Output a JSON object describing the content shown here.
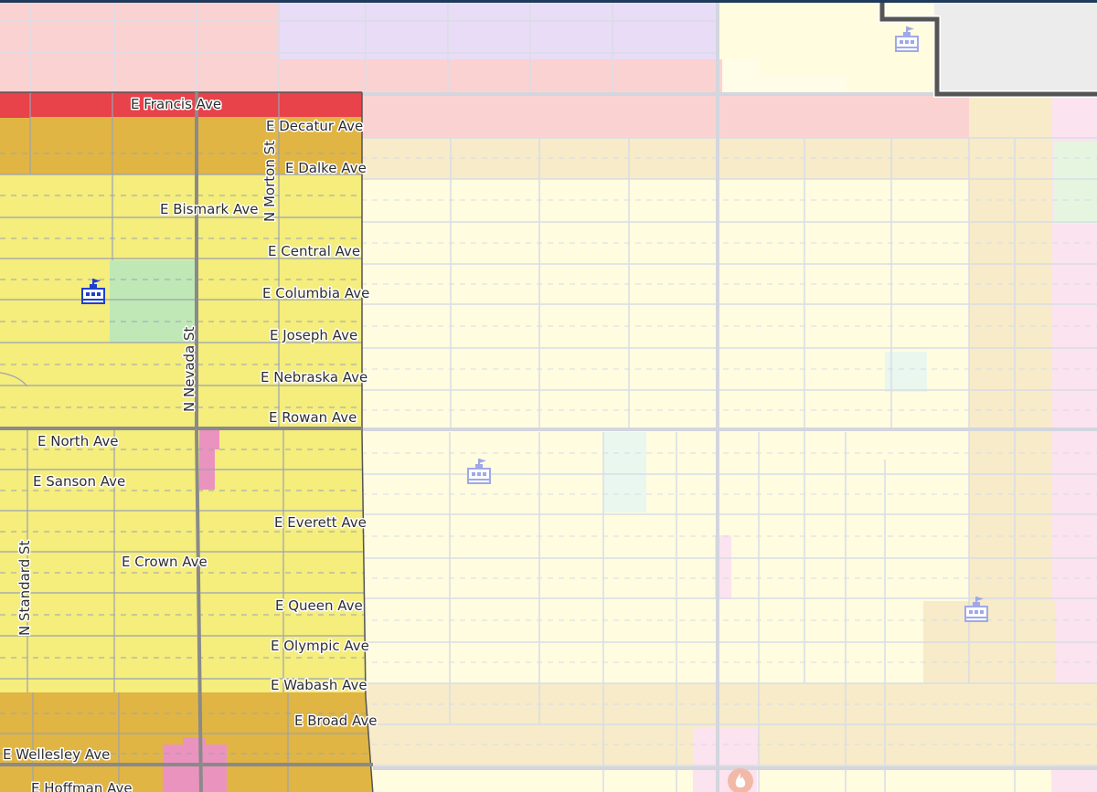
{
  "map": {
    "colors": {
      "highlight_residential": "#f5ed7c",
      "highlight_medium": "#e1b543",
      "highlight_commercial": "#e8424a",
      "park": "#bfe8b6",
      "faded_residential": "#fffce0",
      "faded_medium": "#f7ebc9",
      "faded_commercial": "#fbd2d2",
      "faded_institutional": "#e9dcf7",
      "faded_mixed": "#fbe3ef",
      "pink_parcel": "#ea93bf",
      "boundary": "#555555",
      "school_icon_active": "#1f3fd0",
      "school_icon_faded": "#9fa9e8"
    },
    "streets": [
      {
        "id": "e-francis-ave",
        "label": "E Francis Ave"
      },
      {
        "id": "e-decatur-ave",
        "label": "E Decatur Ave"
      },
      {
        "id": "e-dalke-ave",
        "label": "E Dalke Ave"
      },
      {
        "id": "n-morton-st",
        "label": "N Morton St"
      },
      {
        "id": "e-bismark-ave",
        "label": "E Bismark Ave"
      },
      {
        "id": "e-central-ave",
        "label": "E Central Ave"
      },
      {
        "id": "e-columbia-ave",
        "label": "E Columbia Ave"
      },
      {
        "id": "e-joseph-ave",
        "label": "E Joseph Ave"
      },
      {
        "id": "n-nevada-st",
        "label": "N Nevada St"
      },
      {
        "id": "e-nebraska-ave",
        "label": "E Nebraska Ave"
      },
      {
        "id": "e-rowan-ave",
        "label": "E Rowan Ave"
      },
      {
        "id": "e-north-ave",
        "label": "E North Ave"
      },
      {
        "id": "e-sanson-ave",
        "label": "E Sanson Ave"
      },
      {
        "id": "e-everett-ave",
        "label": "E Everett Ave"
      },
      {
        "id": "e-crown-ave",
        "label": "E Crown Ave"
      },
      {
        "id": "n-standard-st",
        "label": "N Standard St"
      },
      {
        "id": "e-queen-ave",
        "label": "E Queen Ave"
      },
      {
        "id": "e-olympic-ave",
        "label": "E Olympic Ave"
      },
      {
        "id": "e-wabash-ave",
        "label": "E Wabash Ave"
      },
      {
        "id": "e-broad-ave",
        "label": "E Broad Ave"
      },
      {
        "id": "e-wellesley-ave",
        "label": "E Wellesley Ave"
      },
      {
        "id": "e-hoffman-ave",
        "label": "E Hoffman Ave"
      }
    ],
    "icons": [
      {
        "id": "school-1",
        "icon": "school-icon",
        "state": "active"
      },
      {
        "id": "school-2",
        "icon": "school-icon",
        "state": "faded"
      },
      {
        "id": "school-3",
        "icon": "school-icon",
        "state": "faded"
      },
      {
        "id": "school-4",
        "icon": "school-icon",
        "state": "faded"
      },
      {
        "id": "fire-1",
        "icon": "fire-station-icon",
        "state": "faded"
      }
    ]
  }
}
